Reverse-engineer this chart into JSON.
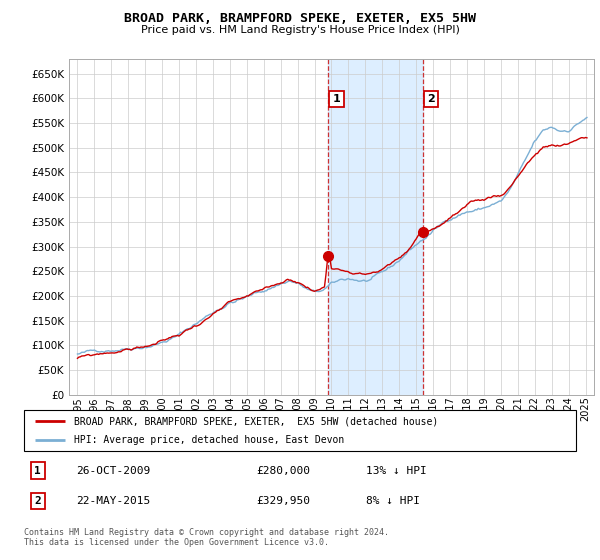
{
  "title": "BROAD PARK, BRAMPFORD SPEKE, EXETER, EX5 5HW",
  "subtitle": "Price paid vs. HM Land Registry's House Price Index (HPI)",
  "ylim": [
    0,
    680000
  ],
  "yticks": [
    0,
    50000,
    100000,
    150000,
    200000,
    250000,
    300000,
    350000,
    400000,
    450000,
    500000,
    550000,
    600000,
    650000
  ],
  "xlim_start": 1994.5,
  "xlim_end": 2025.5,
  "xticks": [
    1995,
    1996,
    1997,
    1998,
    1999,
    2000,
    2001,
    2002,
    2003,
    2004,
    2005,
    2006,
    2007,
    2008,
    2009,
    2010,
    2011,
    2012,
    2013,
    2014,
    2015,
    2016,
    2017,
    2018,
    2019,
    2020,
    2021,
    2022,
    2023,
    2024,
    2025
  ],
  "hpi_color": "#7bafd4",
  "property_color": "#cc0000",
  "marker1_x": 2009.82,
  "marker1_y": 280000,
  "marker2_x": 2015.38,
  "marker2_y": 329950,
  "vline1_x": 2009.82,
  "vline2_x": 2015.38,
  "legend_property": "BROAD PARK, BRAMPFORD SPEKE, EXETER,  EX5 5HW (detached house)",
  "legend_hpi": "HPI: Average price, detached house, East Devon",
  "annotation1_label": "1",
  "annotation2_label": "2",
  "note1_date": "26-OCT-2009",
  "note1_price": "£280,000",
  "note1_hpi": "13% ↓ HPI",
  "note2_date": "22-MAY-2015",
  "note2_price": "£329,950",
  "note2_hpi": "8% ↓ HPI",
  "footer": "Contains HM Land Registry data © Crown copyright and database right 2024.\nThis data is licensed under the Open Government Licence v3.0.",
  "bg_shade_color": "#ddeeff",
  "hpi_seed": 42,
  "prop_seed": 99
}
